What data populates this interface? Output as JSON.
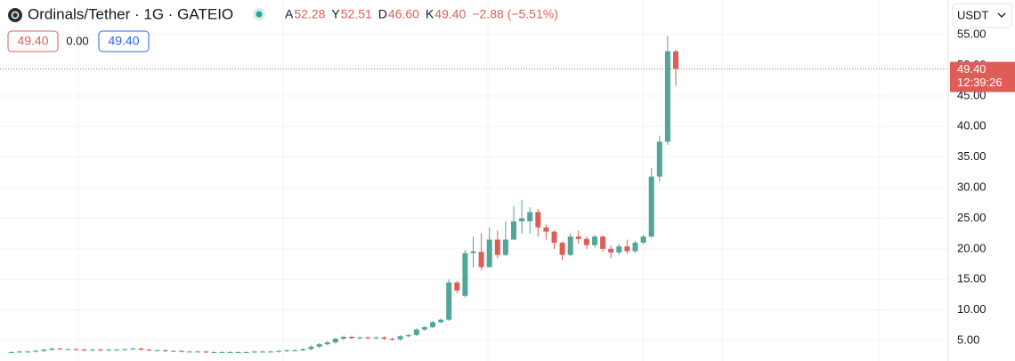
{
  "chart_data": {
    "type": "candlestick",
    "title": "Ordinals/Tether · 1G · GATEIO",
    "ohlc_legend": [
      {
        "label": "A",
        "value": "52.28"
      },
      {
        "label": "Y",
        "value": "52.51"
      },
      {
        "label": "D",
        "value": "46.60"
      },
      {
        "label": "K",
        "value": "49.40"
      }
    ],
    "change": "−2.88 (−5.51%)",
    "inputs": [
      "49.40",
      "0.00",
      "49.40"
    ],
    "currency": "USDT",
    "up_color": "#53a59a",
    "down_color": "#de5e57",
    "open": [
      3.1,
      3.1,
      3.2,
      3.2,
      3.3,
      3.5,
      3.7,
      3.6,
      3.6,
      3.5,
      3.4,
      3.5,
      3.4,
      3.5,
      3.5,
      3.6,
      3.7,
      3.5,
      3.4,
      3.4,
      3.3,
      3.3,
      3.2,
      3.2,
      3.2,
      3.1,
      3.1,
      3.1,
      3.1,
      3.1,
      3.1,
      3.2,
      3.2,
      3.2,
      3.3,
      3.4,
      3.4,
      3.6,
      4.0,
      4.4,
      4.7,
      5.3,
      5.6,
      5.4,
      5.5,
      5.4,
      5.5,
      5.3,
      5.2,
      5.7,
      5.9,
      6.8,
      7.2,
      8.0,
      8.4,
      14.5,
      12.3,
      19.3,
      19.5,
      17.0,
      21.5,
      19.0,
      21.5,
      24.5,
      24.5,
      26.0,
      23.5,
      22.8,
      21.0,
      19.0,
      22.0,
      21.6,
      20.6,
      22.0,
      20.0,
      19.4,
      20.4,
      19.6,
      21.0,
      22.0,
      31.8,
      37.5,
      52.28
    ],
    "high": [
      3.25,
      3.35,
      3.35,
      3.45,
      3.65,
      3.85,
      3.85,
      3.75,
      3.75,
      3.65,
      3.65,
      3.65,
      3.65,
      3.65,
      3.75,
      3.85,
      3.85,
      3.65,
      3.55,
      3.55,
      3.45,
      3.45,
      3.35,
      3.35,
      3.35,
      3.25,
      3.25,
      3.25,
      3.25,
      3.25,
      3.35,
      3.35,
      3.35,
      3.45,
      3.55,
      3.55,
      3.75,
      4.2,
      4.6,
      4.9,
      5.5,
      5.8,
      5.8,
      5.7,
      5.7,
      5.7,
      5.7,
      5.5,
      5.9,
      6.1,
      7.0,
      7.4,
      8.2,
      8.6,
      15.0,
      14.8,
      19.8,
      22.0,
      22.5,
      23.5,
      23.0,
      24.5,
      27.0,
      28.0,
      26.8,
      26.5,
      24.0,
      23.0,
      21.2,
      22.5,
      23.0,
      22.0,
      22.3,
      22.2,
      20.5,
      20.8,
      21.5,
      21.3,
      22.3,
      33.2,
      38.5,
      54.8,
      52.51
    ],
    "low": [
      2.95,
      2.95,
      3.05,
      3.05,
      3.15,
      3.35,
      3.45,
      3.45,
      3.35,
      3.25,
      3.25,
      3.25,
      3.25,
      3.35,
      3.35,
      3.45,
      3.35,
      3.25,
      3.25,
      3.15,
      3.15,
      3.05,
      3.05,
      3.05,
      2.95,
      2.95,
      2.95,
      2.95,
      2.95,
      2.95,
      2.95,
      3.05,
      3.05,
      3.05,
      3.15,
      3.25,
      3.25,
      3.4,
      3.8,
      4.2,
      4.5,
      5.1,
      5.2,
      5.2,
      5.2,
      5.2,
      5.1,
      5.0,
      5.0,
      5.5,
      5.7,
      6.6,
      7.0,
      7.8,
      8.2,
      12.8,
      12.0,
      17.0,
      16.5,
      17.5,
      18.5,
      18.8,
      22.0,
      22.5,
      22.5,
      22.0,
      21.5,
      20.0,
      18.2,
      18.8,
      20.8,
      20.0,
      20.2,
      19.5,
      18.5,
      19.0,
      19.2,
      19.4,
      20.8,
      21.8,
      31.0,
      37.0,
      46.6
    ],
    "close": [
      3.1,
      3.2,
      3.2,
      3.3,
      3.5,
      3.7,
      3.6,
      3.6,
      3.5,
      3.4,
      3.5,
      3.4,
      3.5,
      3.5,
      3.6,
      3.7,
      3.5,
      3.4,
      3.4,
      3.3,
      3.3,
      3.2,
      3.2,
      3.2,
      3.1,
      3.1,
      3.1,
      3.1,
      3.1,
      3.1,
      3.2,
      3.2,
      3.2,
      3.3,
      3.4,
      3.4,
      3.6,
      4.0,
      4.4,
      4.7,
      5.3,
      5.6,
      5.4,
      5.5,
      5.4,
      5.5,
      5.3,
      5.2,
      5.7,
      5.9,
      6.8,
      7.2,
      8.0,
      8.4,
      14.5,
      13.2,
      19.3,
      19.6,
      17.0,
      21.5,
      19.0,
      21.5,
      24.5,
      25.0,
      26.0,
      23.5,
      22.8,
      21.0,
      19.0,
      22.0,
      21.6,
      20.6,
      22.0,
      20.0,
      19.4,
      20.4,
      19.6,
      21.0,
      22.0,
      31.8,
      37.5,
      52.3,
      49.4
    ],
    "ylim": [
      1.66,
      60.67
    ],
    "yticks": [
      {
        "value": 5,
        "label": "5.00"
      },
      {
        "value": 10,
        "label": "10.00"
      },
      {
        "value": 15,
        "label": "15.00"
      },
      {
        "value": 20,
        "label": "20.00"
      },
      {
        "value": 25,
        "label": "25.00"
      },
      {
        "value": 30,
        "label": "30.00"
      },
      {
        "value": 35,
        "label": "35.00"
      },
      {
        "value": 40,
        "label": "40.00"
      },
      {
        "value": 45,
        "label": "45.00"
      },
      {
        "value": 50,
        "label": "50.00"
      },
      {
        "value": 55,
        "label": "55.00"
      }
    ],
    "last_price": {
      "value": 49.4,
      "label": "49.40"
    },
    "last_time": "12:39:26",
    "grid": true
  }
}
